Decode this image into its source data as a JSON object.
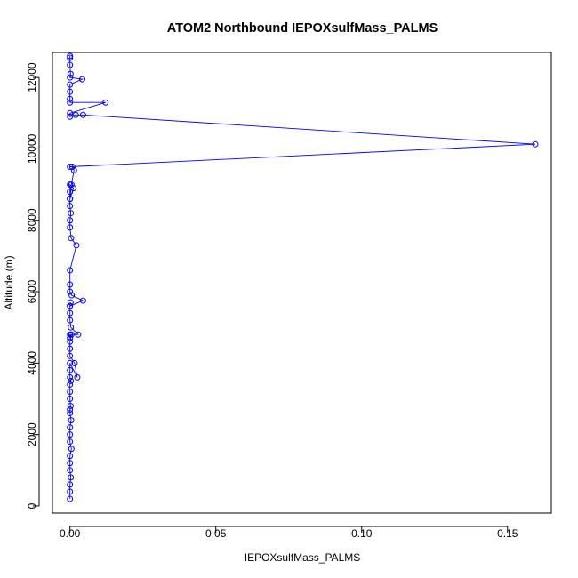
{
  "chart_data": {
    "type": "scatter",
    "title": "ATOM2 Northbound IEPOXsulfMass_PALMS",
    "xlabel": "IEPOXsulfMass_PALMS",
    "ylabel": "Altitude (m)",
    "xlim": [
      -0.006,
      0.165
    ],
    "ylim": [
      -200,
      12700
    ],
    "x_ticks": [
      0.0,
      0.05,
      0.1,
      0.15
    ],
    "x_tick_labels": [
      "0.00",
      "0.05",
      "0.10",
      "0.15"
    ],
    "y_ticks": [
      0,
      2000,
      4000,
      6000,
      8000,
      10000,
      12000
    ],
    "y_tick_labels": [
      "0",
      "2000",
      "4000",
      "6000",
      "8000",
      "10000",
      "12000"
    ],
    "grid": false,
    "marker": "open-circle",
    "connected": true,
    "colors": {
      "series": "#0000ff",
      "frame": "#000000",
      "background": "#ffffff"
    },
    "series": [
      {
        "x": [
          0,
          0,
          0,
          0.0003,
          0,
          0,
          0,
          0.0005,
          0,
          0,
          0,
          0.0004,
          0,
          0,
          0.0002,
          0,
          0,
          0,
          0.0003,
          0,
          0,
          0,
          0.0025,
          0.0016,
          0,
          0,
          0,
          0.0005,
          0,
          0,
          0.0028,
          0.0003,
          0,
          0,
          0,
          0.0002,
          0,
          0.0045,
          0.0006,
          0,
          0,
          0,
          0.0022,
          0.0004,
          0,
          0,
          0.0003,
          0,
          0,
          0.0012,
          0,
          0,
          0,
          0.0005,
          0.0014,
          0.0008,
          0,
          0.1595,
          0.0045,
          0.002,
          0,
          0,
          0.0122,
          0,
          0,
          0,
          0,
          0.0042,
          0,
          0.0002,
          0,
          0,
          0
        ],
        "y": [
          200,
          400,
          600,
          800,
          1000,
          1200,
          1400,
          1600,
          1800,
          2000,
          2200,
          2400,
          2600,
          2700,
          2800,
          3000,
          3200,
          3400,
          3500,
          3600,
          3800,
          4000,
          3600,
          4000,
          4200,
          4400,
          4600,
          4800,
          4700,
          4800,
          4800,
          5000,
          5200,
          5400,
          5600,
          5700,
          5600,
          5750,
          5900,
          6000,
          6200,
          6600,
          7300,
          7500,
          7800,
          8000,
          8200,
          8400,
          8600,
          8900,
          9000,
          8800,
          8600,
          9000,
          9400,
          9500,
          9500,
          10130,
          10950,
          10950,
          10900,
          11000,
          11300,
          11300,
          11400,
          11600,
          11800,
          11950,
          12000,
          12100,
          12350,
          12550,
          12600
        ]
      }
    ]
  }
}
